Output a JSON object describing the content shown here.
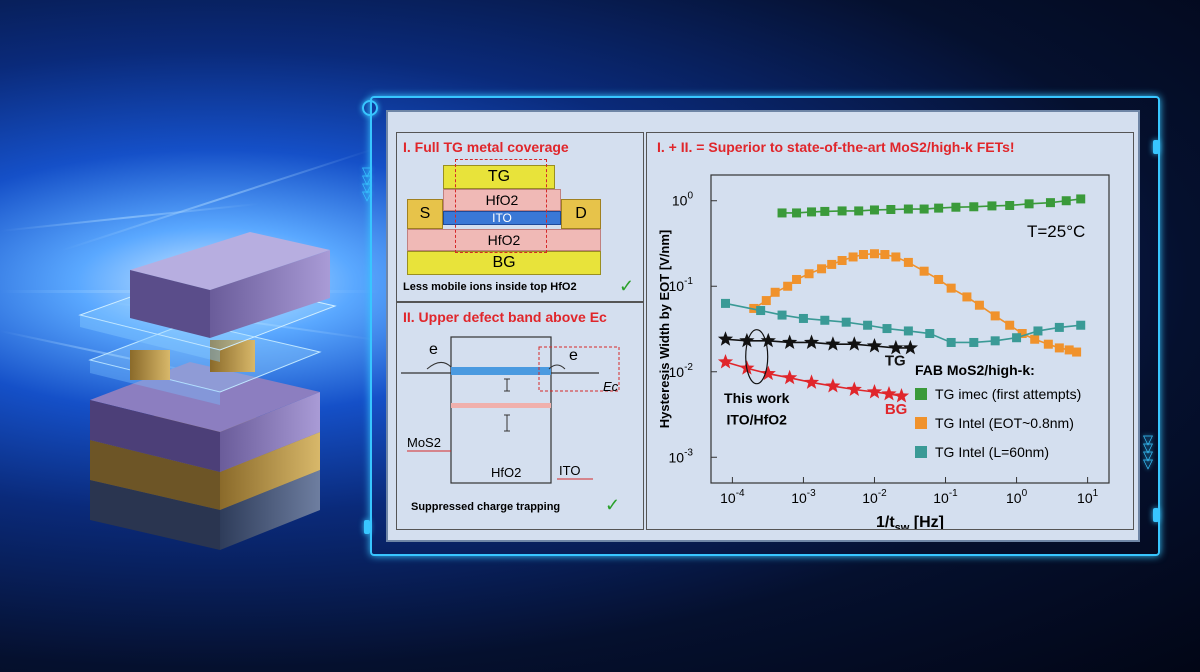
{
  "section1": {
    "title": "I. Full TG metal coverage",
    "layers": {
      "tg": "TG",
      "top_oxide": "HfO2",
      "ito": "ITO",
      "bottom_oxide": "HfO2",
      "bg": "BG",
      "source": "S",
      "drain": "D"
    },
    "caption": "Less mobile ions inside top HfO2",
    "check": "✓"
  },
  "section2": {
    "title": "II. Upper defect band above Ec",
    "labels": {
      "electron_left": "e",
      "electron_right": "e",
      "ec": "Ec",
      "mos2": "MoS2",
      "hfo2": "HfO2",
      "ito": "ITO"
    },
    "caption": "Suppressed charge trapping",
    "check": "✓"
  },
  "chart_title": "I. + II. = Superior to state-of-the-art MoS2/high-k FETs!",
  "chart_data": {
    "type": "scatter",
    "xlabel": "1/tsw [Hz]",
    "ylabel": "Hysteresis Width by EOT [V/nm]",
    "xscale": "log",
    "yscale": "log",
    "xlim": [
      5e-05,
      20
    ],
    "ylim": [
      0.0005,
      2
    ],
    "x_ticks": [
      "10-4",
      "10-3",
      "10-2",
      "10-1",
      "100",
      "101"
    ],
    "y_ticks": [
      "10-3",
      "10-2",
      "10-1",
      "100"
    ],
    "annotation": "T=25°C",
    "legend_title": "FAB MoS2/high-k:",
    "series": [
      {
        "name": "TG imec (first attempts)",
        "marker": "square",
        "color": "#3a9a3a",
        "x": [
          0.0005,
          0.0008,
          0.0013,
          0.002,
          0.0035,
          0.006,
          0.01,
          0.017,
          0.03,
          0.05,
          0.08,
          0.14,
          0.25,
          0.45,
          0.8,
          1.5,
          3,
          5,
          8
        ],
        "y": [
          0.72,
          0.72,
          0.74,
          0.75,
          0.76,
          0.76,
          0.78,
          0.79,
          0.8,
          0.8,
          0.82,
          0.84,
          0.85,
          0.87,
          0.88,
          0.92,
          0.95,
          1.0,
          1.05
        ]
      },
      {
        "name": "TG Intel (EOT~0.8nm)",
        "marker": "square",
        "color": "#f0922c",
        "x": [
          0.0002,
          0.0003,
          0.0004,
          0.0006,
          0.0008,
          0.0012,
          0.0018,
          0.0025,
          0.0035,
          0.005,
          0.007,
          0.01,
          0.014,
          0.02,
          0.03,
          0.05,
          0.08,
          0.12,
          0.2,
          0.3,
          0.5,
          0.8,
          1.2,
          1.8,
          2.8,
          4,
          5.5,
          7
        ],
        "y": [
          0.055,
          0.068,
          0.085,
          0.1,
          0.12,
          0.14,
          0.16,
          0.18,
          0.2,
          0.22,
          0.235,
          0.24,
          0.235,
          0.22,
          0.19,
          0.15,
          0.12,
          0.095,
          0.075,
          0.06,
          0.045,
          0.035,
          0.028,
          0.024,
          0.021,
          0.019,
          0.018,
          0.017
        ]
      },
      {
        "name": "TG Intel (L=60nm)",
        "marker": "square",
        "color": "#3a9a96",
        "x": [
          8e-05,
          0.00025,
          0.0005,
          0.001,
          0.002,
          0.004,
          0.008,
          0.015,
          0.03,
          0.06,
          0.12,
          0.25,
          0.5,
          1,
          2,
          4,
          8
        ],
        "y": [
          0.063,
          0.052,
          0.046,
          0.042,
          0.04,
          0.038,
          0.035,
          0.032,
          0.03,
          0.028,
          0.022,
          0.022,
          0.023,
          0.025,
          0.03,
          0.033,
          0.035
        ]
      },
      {
        "name": "TG",
        "marker": "star",
        "color": "#111111",
        "x": [
          8e-05,
          0.00016,
          0.00032,
          0.00064,
          0.0013,
          0.0026,
          0.0052,
          0.01,
          0.02,
          0.032
        ],
        "y": [
          0.024,
          0.023,
          0.023,
          0.022,
          0.022,
          0.021,
          0.021,
          0.02,
          0.019,
          0.019
        ]
      },
      {
        "name": "BG",
        "marker": "star",
        "color": "#e0262b",
        "x": [
          8e-05,
          0.00016,
          0.00032,
          0.00064,
          0.0013,
          0.0026,
          0.0052,
          0.01,
          0.016,
          0.024
        ],
        "y": [
          0.013,
          0.011,
          0.0095,
          0.0085,
          0.0075,
          0.0068,
          0.0062,
          0.0058,
          0.0055,
          0.0052
        ]
      }
    ],
    "labels": {
      "tg": "TG",
      "bg": "BG",
      "this_work_1": "This work",
      "this_work_2": "ITO/HfO2"
    }
  }
}
